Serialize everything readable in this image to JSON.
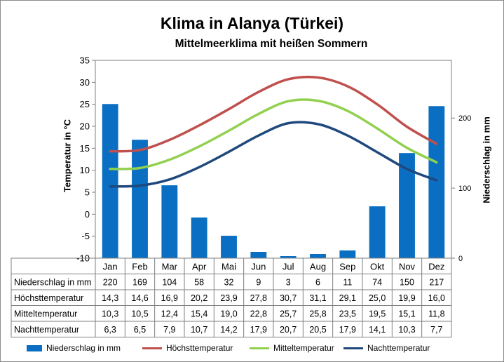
{
  "title": "Klima in Alanya (Türkei)",
  "subtitle": "Mittelmeerklima mit heißen Sommern",
  "colors": {
    "precip": "#0a6fc2",
    "high": "#c0504d",
    "mean": "#92d050",
    "low": "#1f497d"
  },
  "chart_data": {
    "type": "bar",
    "title": "Klima in Alanya (Türkei)",
    "subtitle": "Mittelmeerklima mit heißen Sommern",
    "categories": [
      "Jan",
      "Feb",
      "Mar",
      "Apr",
      "Mai",
      "Jun",
      "Jul",
      "Aug",
      "Sep",
      "Okt",
      "Nov",
      "Dez"
    ],
    "ylabel_left": "Temperatur in °C",
    "ylabel_right": "Niederschlag in mm",
    "ylim_left": [
      -10,
      35
    ],
    "yticks_left": [
      "35",
      "30",
      "25",
      "20",
      "15",
      "10",
      "5",
      "0",
      "-5",
      "-10"
    ],
    "ylim_right": [
      0,
      282.35
    ],
    "yticks_right": [
      "200",
      "100",
      "0"
    ],
    "series": [
      {
        "name": "Niederschlag in mm",
        "kind": "bar",
        "axis": "right",
        "values": [
          220,
          169,
          104,
          58,
          32,
          9,
          3,
          6,
          11,
          74,
          150,
          217
        ],
        "labels": [
          "220",
          "169",
          "104",
          "58",
          "32",
          "9",
          "3",
          "6",
          "11",
          "74",
          "150",
          "217"
        ]
      },
      {
        "name": "Höchsttemperatur",
        "kind": "line",
        "axis": "left",
        "values": [
          14.3,
          14.6,
          16.9,
          20.2,
          23.9,
          27.8,
          30.7,
          31.1,
          29.1,
          25.0,
          19.9,
          16.0
        ],
        "labels": [
          "14,3",
          "14,6",
          "16,9",
          "20,2",
          "23,9",
          "27,8",
          "30,7",
          "31,1",
          "29,1",
          "25,0",
          "19,9",
          "16,0"
        ]
      },
      {
        "name": "Mitteltemperatur",
        "kind": "line",
        "axis": "left",
        "values": [
          10.3,
          10.5,
          12.4,
          15.4,
          19.0,
          22.8,
          25.7,
          25.8,
          23.5,
          19.5,
          15.1,
          11.8
        ],
        "labels": [
          "10,3",
          "10,5",
          "12,4",
          "15,4",
          "19,0",
          "22,8",
          "25,7",
          "25,8",
          "23,5",
          "19,5",
          "15,1",
          "11,8"
        ]
      },
      {
        "name": "Nachttemperatur",
        "kind": "line",
        "axis": "left",
        "values": [
          6.3,
          6.5,
          7.9,
          10.7,
          14.2,
          17.9,
          20.7,
          20.5,
          17.9,
          14.1,
          10.3,
          7.7
        ],
        "labels": [
          "6,3",
          "6,5",
          "7,9",
          "10,7",
          "14,2",
          "17,9",
          "20,7",
          "20,5",
          "17,9",
          "14,1",
          "10,3",
          "7,7"
        ]
      }
    ],
    "grid": false,
    "legend": "bottom"
  }
}
